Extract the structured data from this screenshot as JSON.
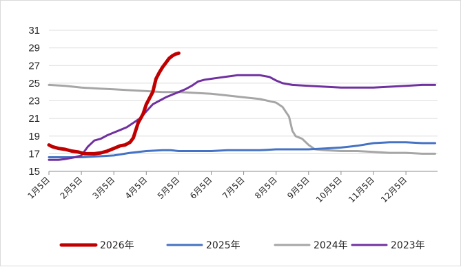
{
  "chart_data": {
    "type": "line",
    "title": "",
    "xlabel": "",
    "ylabel": "",
    "x_tick_labels": [
      "1月5日",
      "2月5日",
      "3月5日",
      "4月5日",
      "5月5日",
      "6月5日",
      "7月5日",
      "8月5日",
      "9月5日",
      "10月5日",
      "11月5日",
      "12月5日"
    ],
    "y_ticks": [
      15,
      17,
      19,
      21,
      23,
      25,
      27,
      29,
      31
    ],
    "ylim": [
      15,
      31
    ],
    "x_domain_months": [
      0,
      11.9
    ],
    "grid": "horizontal",
    "legend_position": "bottom",
    "series": [
      {
        "name": "2026年",
        "color": "#c00000",
        "points": [
          [
            0,
            18.0
          ],
          [
            0.1,
            17.8
          ],
          [
            0.3,
            17.6
          ],
          [
            0.5,
            17.5
          ],
          [
            0.7,
            17.3
          ],
          [
            0.9,
            17.2
          ],
          [
            1.0,
            17.1
          ],
          [
            1.1,
            17.0
          ],
          [
            1.4,
            17.0
          ],
          [
            1.6,
            17.1
          ],
          [
            1.8,
            17.3
          ],
          [
            2.0,
            17.6
          ],
          [
            2.2,
            17.9
          ],
          [
            2.35,
            18.0
          ],
          [
            2.5,
            18.3
          ],
          [
            2.6,
            18.8
          ],
          [
            2.75,
            20.5
          ],
          [
            2.9,
            21.5
          ],
          [
            3.0,
            22.6
          ],
          [
            3.1,
            23.3
          ],
          [
            3.2,
            24.0
          ],
          [
            3.3,
            25.5
          ],
          [
            3.4,
            26.2
          ],
          [
            3.5,
            26.8
          ],
          [
            3.6,
            27.3
          ],
          [
            3.7,
            27.8
          ],
          [
            3.8,
            28.1
          ],
          [
            3.9,
            28.3
          ],
          [
            4.0,
            28.4
          ]
        ]
      },
      {
        "name": "2025年",
        "color": "#4472c4",
        "points": [
          [
            0,
            16.6
          ],
          [
            0.5,
            16.6
          ],
          [
            1.0,
            16.6
          ],
          [
            1.5,
            16.7
          ],
          [
            2.0,
            16.8
          ],
          [
            2.5,
            17.1
          ],
          [
            3.0,
            17.3
          ],
          [
            3.5,
            17.4
          ],
          [
            3.75,
            17.4
          ],
          [
            4.0,
            17.3
          ],
          [
            4.5,
            17.3
          ],
          [
            5.0,
            17.3
          ],
          [
            5.5,
            17.4
          ],
          [
            6.0,
            17.4
          ],
          [
            6.5,
            17.4
          ],
          [
            7.0,
            17.5
          ],
          [
            7.5,
            17.5
          ],
          [
            8.0,
            17.5
          ],
          [
            8.5,
            17.6
          ],
          [
            9.0,
            17.7
          ],
          [
            9.5,
            17.9
          ],
          [
            10.0,
            18.2
          ],
          [
            10.5,
            18.3
          ],
          [
            11.0,
            18.3
          ],
          [
            11.5,
            18.2
          ],
          [
            11.9,
            18.2
          ]
        ]
      },
      {
        "name": "2024年",
        "color": "#a6a6a6",
        "points": [
          [
            0,
            24.8
          ],
          [
            0.5,
            24.7
          ],
          [
            1.0,
            24.5
          ],
          [
            1.5,
            24.4
          ],
          [
            2.0,
            24.3
          ],
          [
            2.5,
            24.2
          ],
          [
            3.0,
            24.1
          ],
          [
            3.5,
            24.0
          ],
          [
            4.0,
            24.0
          ],
          [
            4.5,
            23.9
          ],
          [
            5.0,
            23.8
          ],
          [
            5.5,
            23.6
          ],
          [
            6.0,
            23.4
          ],
          [
            6.5,
            23.2
          ],
          [
            7.0,
            22.8
          ],
          [
            7.2,
            22.3
          ],
          [
            7.4,
            21.2
          ],
          [
            7.5,
            19.6
          ],
          [
            7.6,
            19.0
          ],
          [
            7.8,
            18.7
          ],
          [
            8.0,
            18.0
          ],
          [
            8.2,
            17.5
          ],
          [
            8.5,
            17.4
          ],
          [
            9.0,
            17.3
          ],
          [
            9.5,
            17.3
          ],
          [
            10.0,
            17.2
          ],
          [
            10.5,
            17.1
          ],
          [
            11.0,
            17.1
          ],
          [
            11.5,
            17.0
          ],
          [
            11.9,
            17.0
          ]
        ]
      },
      {
        "name": "2023年",
        "color": "#7030a0",
        "points": [
          [
            0,
            16.3
          ],
          [
            0.3,
            16.3
          ],
          [
            0.5,
            16.4
          ],
          [
            0.8,
            16.6
          ],
          [
            1.0,
            16.8
          ],
          [
            1.2,
            17.8
          ],
          [
            1.4,
            18.5
          ],
          [
            1.6,
            18.7
          ],
          [
            1.8,
            19.1
          ],
          [
            2.0,
            19.4
          ],
          [
            2.2,
            19.7
          ],
          [
            2.4,
            20.0
          ],
          [
            2.6,
            20.5
          ],
          [
            2.8,
            21.0
          ],
          [
            3.0,
            21.8
          ],
          [
            3.2,
            22.6
          ],
          [
            3.4,
            23.0
          ],
          [
            3.6,
            23.4
          ],
          [
            3.8,
            23.7
          ],
          [
            4.0,
            24.0
          ],
          [
            4.2,
            24.3
          ],
          [
            4.4,
            24.7
          ],
          [
            4.6,
            25.2
          ],
          [
            4.8,
            25.4
          ],
          [
            5.0,
            25.5
          ],
          [
            5.2,
            25.6
          ],
          [
            5.4,
            25.7
          ],
          [
            5.6,
            25.8
          ],
          [
            5.8,
            25.9
          ],
          [
            6.0,
            25.9
          ],
          [
            6.5,
            25.9
          ],
          [
            6.8,
            25.7
          ],
          [
            7.0,
            25.3
          ],
          [
            7.2,
            25.0
          ],
          [
            7.5,
            24.8
          ],
          [
            8.0,
            24.7
          ],
          [
            8.5,
            24.6
          ],
          [
            9.0,
            24.5
          ],
          [
            9.5,
            24.5
          ],
          [
            10.0,
            24.5
          ],
          [
            10.5,
            24.6
          ],
          [
            11.0,
            24.7
          ],
          [
            11.5,
            24.8
          ],
          [
            11.9,
            24.8
          ]
        ]
      }
    ]
  }
}
